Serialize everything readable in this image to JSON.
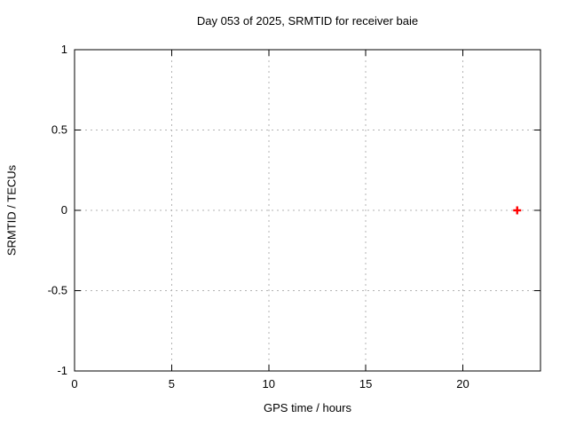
{
  "chart_data": {
    "type": "scatter",
    "title": "Day 053 of 2025, SRMTID for receiver baie",
    "xlabel": "GPS time / hours",
    "ylabel": "SRMTID / TECUs",
    "xlim": [
      0,
      24
    ],
    "ylim": [
      -1,
      1
    ],
    "xticks": [
      0,
      5,
      10,
      15,
      20
    ],
    "yticks": [
      -1,
      -0.5,
      0,
      0.5,
      1
    ],
    "grid": true,
    "legend_position": "none",
    "series": [
      {
        "name": "SRMTID",
        "marker": "plus",
        "color": "#ff0000",
        "points": [
          [
            22.8,
            0.0
          ]
        ]
      }
    ]
  },
  "colors": {
    "background": "#ffffff",
    "border": "#000000",
    "grid": "#b3b3b3",
    "text": "#000000",
    "marker": "#ff0000"
  }
}
